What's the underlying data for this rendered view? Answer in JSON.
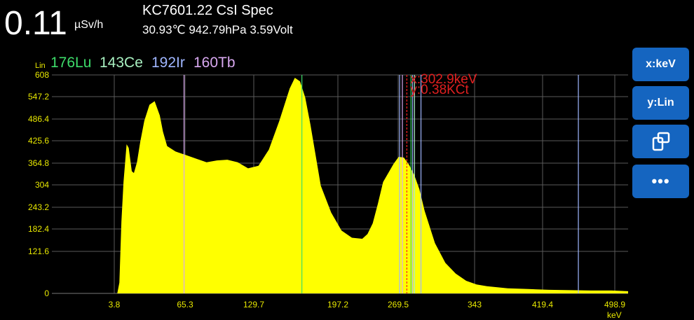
{
  "header": {
    "dose_value": "0.11",
    "dose_unit": "µSv/h",
    "device_title": "KC7601.22 CsI Spec",
    "status_line": "30.93℃ 942.79hPa 3.59Volt"
  },
  "chart_header": {
    "scale_mode": "Lin",
    "isotopes": [
      {
        "label": "176Lu",
        "color": "#3ddc6a"
      },
      {
        "label": "143Ce",
        "color": "#a8f0c0"
      },
      {
        "label": "192Ir",
        "color": "#9fb6ff"
      },
      {
        "label": "160Tb",
        "color": "#d8a8f0"
      }
    ]
  },
  "buttons": {
    "x_axis": "x:keV",
    "y_axis": "y:Lin"
  },
  "cursor": {
    "x_readout": "x:302.9keV",
    "y_readout": "y:0.38KCt",
    "energy": 302.9
  },
  "chart_data": {
    "type": "area",
    "xlabel": "keV",
    "ylabel": "",
    "xlim": [
      -39,
      516
    ],
    "ylim": [
      0,
      608
    ],
    "x_ticks": [
      "3.8",
      "65.3",
      "129.7",
      "197.2",
      "269.5",
      "343",
      "419.4",
      "498.9"
    ],
    "y_ticks": [
      "0",
      "121.6",
      "182.4",
      "243.2",
      "304",
      "364.8",
      "425.6",
      "486.4",
      "547.2",
      "608"
    ],
    "y_tick_values": [
      0,
      121.6,
      182.4,
      243.2,
      304,
      364.8,
      425.6,
      486.4,
      547.2,
      608
    ],
    "fill_color": "#ffff00",
    "series": [
      {
        "x": [
          24,
          26,
          28,
          30,
          33,
          35,
          38,
          40,
          43,
          46,
          50,
          55,
          60,
          65,
          68,
          72,
          80,
          90,
          100,
          110,
          120,
          130,
          140,
          150,
          160,
          170,
          180,
          190,
          195,
          200,
          205,
          210,
          220,
          230,
          240,
          250,
          260,
          265,
          270,
          275,
          280,
          290,
          295,
          300,
          305,
          310,
          315,
          320,
          330,
          340,
          350,
          360,
          370,
          380,
          400,
          420,
          440,
          460,
          480,
          500,
          516
        ],
        "y": [
          0,
          30,
          200,
          310,
          415,
          405,
          340,
          335,
          365,
          420,
          480,
          525,
          535,
          495,
          450,
          410,
          395,
          385,
          375,
          365,
          370,
          372,
          365,
          348,
          355,
          400,
          480,
          570,
          600,
          590,
          545,
          470,
          300,
          225,
          175,
          155,
          152,
          165,
          195,
          250,
          310,
          360,
          380,
          378,
          358,
          330,
          290,
          230,
          140,
          85,
          55,
          35,
          25,
          20,
          14,
          12,
          10,
          9,
          8,
          8,
          6
        ]
      }
    ],
    "markers": [
      {
        "energy": 88.3,
        "color": "#d8a8f0"
      },
      {
        "energy": 201.8,
        "color": "#3ddc6a"
      },
      {
        "energy": 295.9,
        "color": "#9fb6ff"
      },
      {
        "energy": 298.6,
        "color": "#d8a8f0"
      },
      {
        "energy": 306.9,
        "color": "#3ddc6a"
      },
      {
        "energy": 308.5,
        "color": "#9fb6ff"
      },
      {
        "energy": 310.3,
        "color": "#a8f0c0"
      },
      {
        "energy": 316.5,
        "color": "#9fb6ff"
      },
      {
        "energy": 468.1,
        "color": "#9fb6ff"
      }
    ]
  }
}
